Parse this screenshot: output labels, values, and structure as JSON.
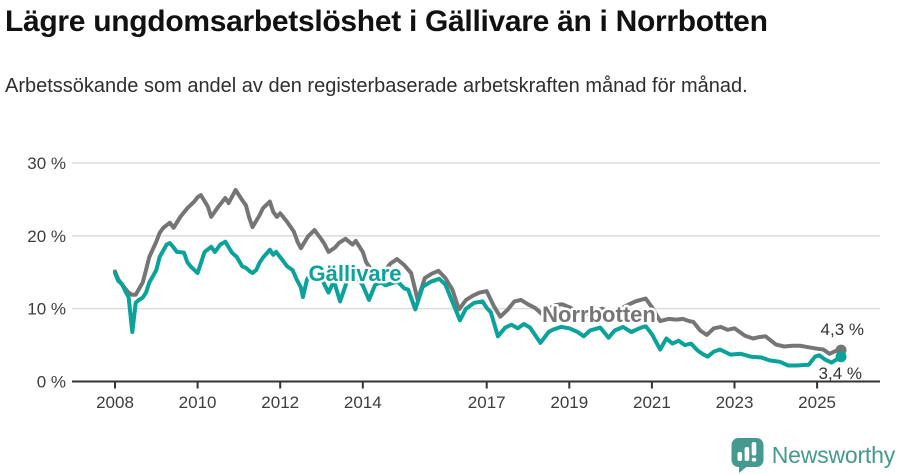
{
  "header": {
    "title": "Lägre ungdomsarbetslöshet i Gällivare än i Norrbotten",
    "subtitle": "Arbetssökande som andel av den registerbaserade arbetskraften månad för månad."
  },
  "chart_data": {
    "type": "line",
    "title": "Lägre ungdomsarbetslöshet i Gällivare än i Norrbotten",
    "xlabel": "",
    "ylabel": "",
    "ylim": [
      0,
      30
    ],
    "xlim": [
      2007.8,
      2025.8
    ],
    "grid": true,
    "legend_position": "inline-labels",
    "y_ticks": [
      {
        "value": 30,
        "label": "30 %"
      },
      {
        "value": 20,
        "label": "20 %"
      },
      {
        "value": 10,
        "label": "10 %"
      },
      {
        "value": 0,
        "label": "0 %"
      }
    ],
    "x_ticks": [
      {
        "value": 2008,
        "label": "2008"
      },
      {
        "value": 2010,
        "label": "2010"
      },
      {
        "value": 2012,
        "label": "2012"
      },
      {
        "value": 2014,
        "label": "2014"
      },
      {
        "value": 2017,
        "label": "2017"
      },
      {
        "value": 2019,
        "label": "2019"
      },
      {
        "value": 2021,
        "label": "2021"
      },
      {
        "value": 2023,
        "label": "2023"
      },
      {
        "value": 2025,
        "label": "2025"
      }
    ],
    "series": [
      {
        "name": "Norrbotten",
        "color": "#757575",
        "end_label": "4,3 %",
        "last_value": 4.3,
        "points": [
          [
            2008.0,
            15.1
          ],
          [
            2008.08,
            14.0
          ],
          [
            2008.17,
            13.3
          ],
          [
            2008.33,
            12.2
          ],
          [
            2008.42,
            11.9
          ],
          [
            2008.5,
            11.9
          ],
          [
            2008.67,
            13.6
          ],
          [
            2008.75,
            15.3
          ],
          [
            2008.83,
            17.1
          ],
          [
            2009.0,
            19.2
          ],
          [
            2009.08,
            20.4
          ],
          [
            2009.17,
            21.1
          ],
          [
            2009.33,
            21.8
          ],
          [
            2009.42,
            21.1
          ],
          [
            2009.58,
            22.6
          ],
          [
            2009.75,
            23.8
          ],
          [
            2009.92,
            24.7
          ],
          [
            2010.0,
            25.3
          ],
          [
            2010.08,
            25.6
          ],
          [
            2010.25,
            24.0
          ],
          [
            2010.33,
            22.6
          ],
          [
            2010.5,
            24.0
          ],
          [
            2010.67,
            25.2
          ],
          [
            2010.75,
            24.5
          ],
          [
            2010.92,
            26.3
          ],
          [
            2011.0,
            25.6
          ],
          [
            2011.08,
            24.9
          ],
          [
            2011.17,
            24.2
          ],
          [
            2011.25,
            22.5
          ],
          [
            2011.33,
            21.2
          ],
          [
            2011.5,
            22.8
          ],
          [
            2011.58,
            23.8
          ],
          [
            2011.75,
            24.7
          ],
          [
            2011.83,
            23.3
          ],
          [
            2011.92,
            22.6
          ],
          [
            2012.0,
            23.1
          ],
          [
            2012.17,
            21.9
          ],
          [
            2012.33,
            20.6
          ],
          [
            2012.42,
            19.2
          ],
          [
            2012.5,
            18.3
          ],
          [
            2012.67,
            19.9
          ],
          [
            2012.83,
            20.8
          ],
          [
            2013.0,
            19.5
          ],
          [
            2013.08,
            18.8
          ],
          [
            2013.17,
            17.8
          ],
          [
            2013.33,
            18.4
          ],
          [
            2013.42,
            19.0
          ],
          [
            2013.58,
            19.6
          ],
          [
            2013.75,
            18.8
          ],
          [
            2013.83,
            19.3
          ],
          [
            2014.0,
            17.8
          ],
          [
            2014.08,
            16.4
          ],
          [
            2014.25,
            15.0
          ],
          [
            2014.33,
            14.3
          ],
          [
            2014.5,
            15.0
          ],
          [
            2014.67,
            16.2
          ],
          [
            2014.83,
            16.8
          ],
          [
            2015.0,
            16.0
          ],
          [
            2015.17,
            14.9
          ],
          [
            2015.33,
            11.2
          ],
          [
            2015.5,
            14.2
          ],
          [
            2015.67,
            14.8
          ],
          [
            2015.83,
            15.2
          ],
          [
            2016.0,
            14.2
          ],
          [
            2016.17,
            12.6
          ],
          [
            2016.33,
            9.9
          ],
          [
            2016.5,
            11.2
          ],
          [
            2016.67,
            11.8
          ],
          [
            2016.83,
            12.2
          ],
          [
            2017.0,
            12.4
          ],
          [
            2017.17,
            10.4
          ],
          [
            2017.33,
            8.9
          ],
          [
            2017.5,
            9.8
          ],
          [
            2017.67,
            11.0
          ],
          [
            2017.83,
            11.2
          ],
          [
            2018.0,
            10.6
          ],
          [
            2018.17,
            10.1
          ],
          [
            2018.33,
            9.3
          ],
          [
            2018.5,
            10.0
          ],
          [
            2018.67,
            10.5
          ],
          [
            2018.83,
            10.6
          ],
          [
            2019.0,
            10.2
          ],
          [
            2019.2,
            9.6
          ],
          [
            2019.4,
            9.2
          ],
          [
            2019.6,
            9.7
          ],
          [
            2019.8,
            10.0
          ],
          [
            2020.0,
            9.5
          ],
          [
            2020.2,
            9.9
          ],
          [
            2020.45,
            10.6
          ],
          [
            2020.6,
            11.0
          ],
          [
            2020.85,
            11.4
          ],
          [
            2021.0,
            10.2
          ],
          [
            2021.2,
            8.3
          ],
          [
            2021.4,
            8.6
          ],
          [
            2021.6,
            8.5
          ],
          [
            2021.75,
            8.6
          ],
          [
            2021.9,
            8.3
          ],
          [
            2022.0,
            8.2
          ],
          [
            2022.17,
            7.0
          ],
          [
            2022.33,
            6.4
          ],
          [
            2022.5,
            7.3
          ],
          [
            2022.67,
            7.5
          ],
          [
            2022.83,
            7.1
          ],
          [
            2023.0,
            7.3
          ],
          [
            2023.25,
            6.3
          ],
          [
            2023.45,
            5.9
          ],
          [
            2023.6,
            6.1
          ],
          [
            2023.75,
            6.2
          ],
          [
            2024.0,
            5.1
          ],
          [
            2024.2,
            4.8
          ],
          [
            2024.4,
            4.9
          ],
          [
            2024.6,
            4.9
          ],
          [
            2024.8,
            4.7
          ],
          [
            2025.0,
            4.5
          ],
          [
            2025.15,
            4.4
          ],
          [
            2025.3,
            3.8
          ],
          [
            2025.45,
            4.2
          ],
          [
            2025.58,
            4.3
          ]
        ]
      },
      {
        "name": "Gällivare",
        "color": "#0aa29a",
        "end_label": "3,4 %",
        "last_value": 3.4,
        "points": [
          [
            2008.0,
            14.9
          ],
          [
            2008.08,
            13.8
          ],
          [
            2008.17,
            13.4
          ],
          [
            2008.25,
            12.4
          ],
          [
            2008.33,
            11.6
          ],
          [
            2008.42,
            6.8
          ],
          [
            2008.5,
            10.8
          ],
          [
            2008.58,
            11.2
          ],
          [
            2008.67,
            11.5
          ],
          [
            2008.75,
            12.2
          ],
          [
            2008.83,
            13.6
          ],
          [
            2009.0,
            15.3
          ],
          [
            2009.08,
            17.1
          ],
          [
            2009.25,
            18.8
          ],
          [
            2009.33,
            19.0
          ],
          [
            2009.42,
            18.4
          ],
          [
            2009.5,
            17.8
          ],
          [
            2009.67,
            17.7
          ],
          [
            2009.75,
            16.4
          ],
          [
            2009.83,
            15.8
          ],
          [
            2010.0,
            14.9
          ],
          [
            2010.17,
            17.8
          ],
          [
            2010.33,
            18.5
          ],
          [
            2010.42,
            17.8
          ],
          [
            2010.55,
            18.8
          ],
          [
            2010.67,
            19.2
          ],
          [
            2010.83,
            17.7
          ],
          [
            2010.95,
            17.1
          ],
          [
            2011.08,
            15.8
          ],
          [
            2011.17,
            15.6
          ],
          [
            2011.25,
            15.2
          ],
          [
            2011.33,
            14.9
          ],
          [
            2011.42,
            15.3
          ],
          [
            2011.5,
            16.3
          ],
          [
            2011.58,
            17.0
          ],
          [
            2011.75,
            18.1
          ],
          [
            2011.83,
            17.4
          ],
          [
            2011.9,
            17.8
          ],
          [
            2012.05,
            16.7
          ],
          [
            2012.17,
            15.8
          ],
          [
            2012.3,
            15.3
          ],
          [
            2012.4,
            14.0
          ],
          [
            2012.5,
            12.9
          ],
          [
            2012.55,
            11.6
          ],
          [
            2012.65,
            14.0
          ],
          [
            2012.75,
            14.9
          ],
          [
            2012.85,
            15.1
          ],
          [
            2012.95,
            14.7
          ],
          [
            2013.1,
            13.0
          ],
          [
            2013.17,
            12.2
          ],
          [
            2013.3,
            13.8
          ],
          [
            2013.45,
            11.0
          ],
          [
            2013.6,
            13.5
          ],
          [
            2013.7,
            14.9
          ],
          [
            2013.85,
            14.4
          ],
          [
            2014.0,
            13.2
          ],
          [
            2014.15,
            11.2
          ],
          [
            2014.3,
            13.3
          ],
          [
            2014.45,
            13.6
          ],
          [
            2014.55,
            13.2
          ],
          [
            2014.7,
            13.5
          ],
          [
            2014.85,
            13.7
          ],
          [
            2015.0,
            12.8
          ],
          [
            2015.1,
            12.6
          ],
          [
            2015.27,
            9.9
          ],
          [
            2015.45,
            13.0
          ],
          [
            2015.65,
            13.7
          ],
          [
            2015.85,
            14.1
          ],
          [
            2016.0,
            13.3
          ],
          [
            2016.15,
            11.2
          ],
          [
            2016.35,
            8.4
          ],
          [
            2016.5,
            10.0
          ],
          [
            2016.7,
            10.8
          ],
          [
            2016.9,
            11.0
          ],
          [
            2017.0,
            10.1
          ],
          [
            2017.1,
            9.5
          ],
          [
            2017.27,
            6.2
          ],
          [
            2017.45,
            7.4
          ],
          [
            2017.6,
            7.8
          ],
          [
            2017.75,
            7.3
          ],
          [
            2017.9,
            7.9
          ],
          [
            2018.05,
            7.4
          ],
          [
            2018.3,
            5.3
          ],
          [
            2018.5,
            6.8
          ],
          [
            2018.6,
            7.1
          ],
          [
            2018.8,
            7.5
          ],
          [
            2019.0,
            7.3
          ],
          [
            2019.2,
            6.8
          ],
          [
            2019.35,
            6.2
          ],
          [
            2019.5,
            7.0
          ],
          [
            2019.75,
            7.4
          ],
          [
            2019.95,
            6.0
          ],
          [
            2020.1,
            7.0
          ],
          [
            2020.3,
            7.5
          ],
          [
            2020.5,
            6.8
          ],
          [
            2020.7,
            7.3
          ],
          [
            2020.85,
            7.6
          ],
          [
            2021.0,
            6.5
          ],
          [
            2021.2,
            4.4
          ],
          [
            2021.35,
            5.9
          ],
          [
            2021.5,
            5.2
          ],
          [
            2021.65,
            5.6
          ],
          [
            2021.8,
            5.0
          ],
          [
            2021.95,
            5.2
          ],
          [
            2022.1,
            4.3
          ],
          [
            2022.25,
            3.7
          ],
          [
            2022.35,
            3.4
          ],
          [
            2022.5,
            4.1
          ],
          [
            2022.65,
            4.4
          ],
          [
            2022.9,
            3.7
          ],
          [
            2023.15,
            3.8
          ],
          [
            2023.4,
            3.4
          ],
          [
            2023.65,
            3.3
          ],
          [
            2023.85,
            2.9
          ],
          [
            2024.1,
            2.7
          ],
          [
            2024.3,
            2.2
          ],
          [
            2024.5,
            2.2
          ],
          [
            2024.8,
            2.3
          ],
          [
            2024.95,
            3.4
          ],
          [
            2025.05,
            3.6
          ],
          [
            2025.2,
            3.0
          ],
          [
            2025.35,
            2.6
          ],
          [
            2025.58,
            3.4
          ]
        ]
      }
    ]
  },
  "style": {
    "grid_color": "#dcdcdc",
    "axis_color": "#333333",
    "tick_label_color": "#3d3d3d",
    "logo_color": "#45998e"
  },
  "footer": {
    "brand": "Newsworthy"
  }
}
